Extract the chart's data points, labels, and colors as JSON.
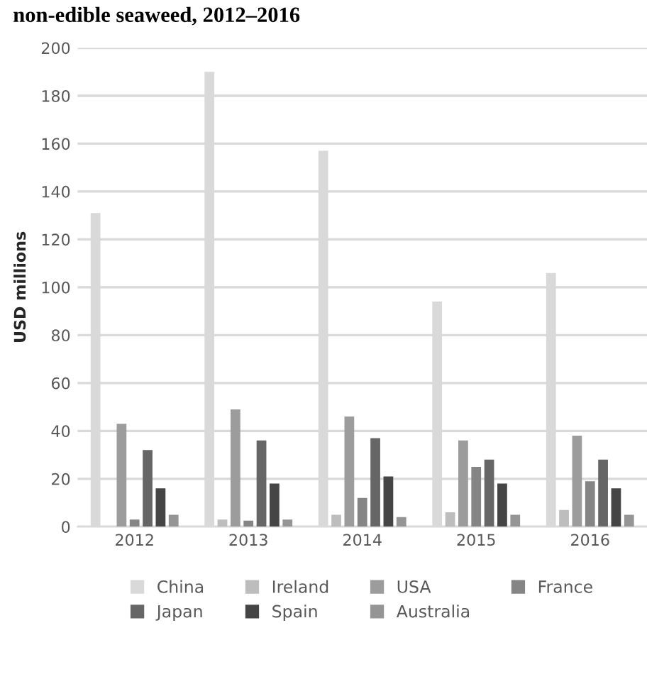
{
  "chart_data": {
    "type": "bar",
    "title": "non-edible seaweed, 2012–2016",
    "ylabel": "USD millions",
    "categories": [
      "2012",
      "2013",
      "2014",
      "2015",
      "2016"
    ],
    "series": [
      {
        "name": "China",
        "color": "#d9d9d9",
        "values": [
          131,
          190,
          157,
          94,
          106
        ]
      },
      {
        "name": "Ireland",
        "color": "#bdbdbd",
        "values": [
          0,
          3,
          5,
          6,
          7
        ]
      },
      {
        "name": "USA",
        "color": "#9c9c9c",
        "values": [
          43,
          49,
          46,
          36,
          38
        ]
      },
      {
        "name": "France",
        "color": "#858585",
        "values": [
          3,
          2.5,
          12,
          25,
          19
        ]
      },
      {
        "name": "Japan",
        "color": "#666666",
        "values": [
          32,
          36,
          37,
          28,
          28
        ]
      },
      {
        "name": "Spain",
        "color": "#454545",
        "values": [
          16,
          18,
          21,
          18,
          16
        ]
      },
      {
        "name": "Australia",
        "color": "#959595",
        "values": [
          5,
          3,
          4,
          5,
          5
        ]
      }
    ],
    "ylim": [
      0,
      200
    ],
    "yticks": [
      0,
      20,
      40,
      60,
      80,
      100,
      120,
      140,
      160,
      180,
      200
    ],
    "grid": "y",
    "legend": "bottom"
  }
}
